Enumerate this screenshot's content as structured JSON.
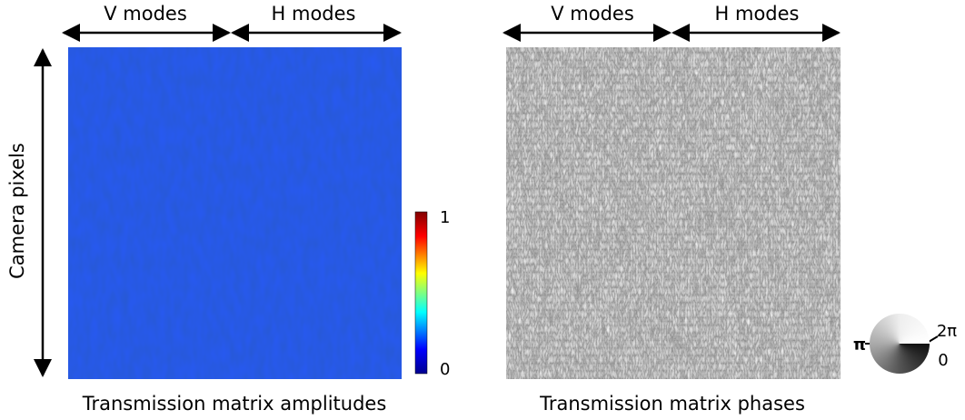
{
  "left_panel": {
    "top_labels": [
      "V modes",
      "H modes"
    ],
    "y_label": "Camera pixels",
    "caption": "Transmission matrix amplitudes",
    "colorbar": {
      "max": 1,
      "min": 0
    }
  },
  "right_panel": {
    "top_labels": [
      "V modes",
      "H modes"
    ],
    "caption": "Transmission matrix phases",
    "phase_wheel": {
      "left": "π",
      "top_right": "2π",
      "bottom_right": "0"
    }
  }
}
